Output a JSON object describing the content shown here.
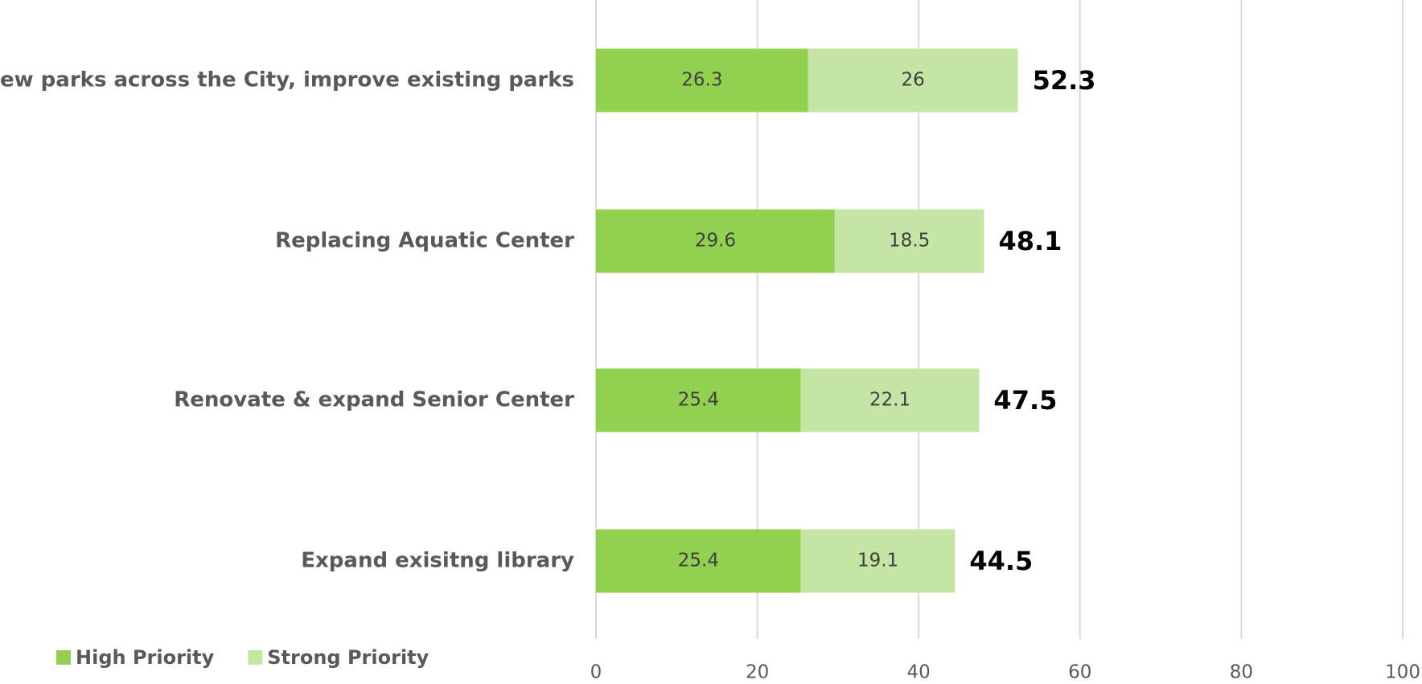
{
  "chart_data": {
    "type": "stacked_barh",
    "categories": [
      "New parks across the City, improve existing parks",
      "Replacing Aquatic Center",
      "Renovate & expand Senior Center",
      "Expand exisitng library"
    ],
    "series": [
      {
        "name": "High Priority",
        "color": "#92d050",
        "values": [
          26.3,
          29.6,
          25.4,
          25.4
        ]
      },
      {
        "name": "Strong Priority",
        "color": "#c5e5a5",
        "values": [
          26,
          18.5,
          22.1,
          19.1
        ]
      }
    ],
    "totals": [
      52.3,
      48.1,
      47.5,
      44.5
    ],
    "xlim": [
      0,
      100
    ],
    "xticks": [
      0,
      20,
      40,
      60,
      80,
      100
    ],
    "grid": true,
    "legend": "bottom-left"
  }
}
